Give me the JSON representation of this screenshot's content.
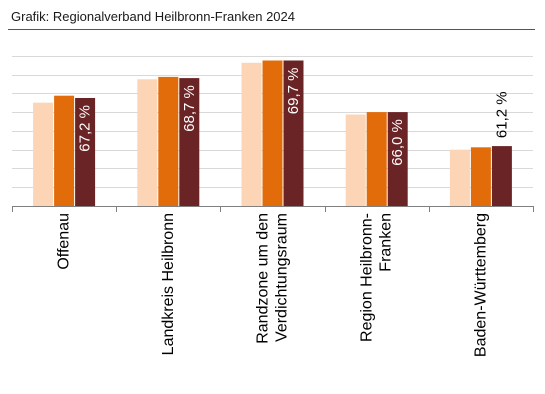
{
  "source": "Grafik: Regionalverband Heilbronn-Franken 2024",
  "colors": {
    "series1": "#fbd5b5",
    "series2": "#e36c0a",
    "series3": "#6b2426",
    "grid": "#d9d9d9",
    "axis": "#808080",
    "label_inside": "#ffffff",
    "label_outside": "#000000"
  },
  "chart_data": {
    "type": "bar",
    "title": "",
    "xlabel": "",
    "ylabel": "",
    "ylim": [
      56.0,
      70.4
    ],
    "grid": true,
    "categories": [
      [
        "Offenau"
      ],
      [
        "Landkreis Heilbronn"
      ],
      [
        "Randzone um den",
        "Verdichtungsraum"
      ],
      [
        "Region Heilbronn-",
        "Franken"
      ],
      [
        "Baden-Württemberg"
      ]
    ],
    "series": [
      {
        "values": [
          64.8,
          66.8,
          68.2,
          63.8,
          60.8
        ]
      },
      {
        "values": [
          65.4,
          67.0,
          68.4,
          64.0,
          61.0
        ]
      },
      {
        "values": [
          65.2,
          66.9,
          68.4,
          64.0,
          61.1
        ]
      }
    ],
    "data_labels": [
      "67,2 %",
      "68,7 %",
      "69,7 %",
      "66,0 %",
      "61,2 %"
    ]
  }
}
